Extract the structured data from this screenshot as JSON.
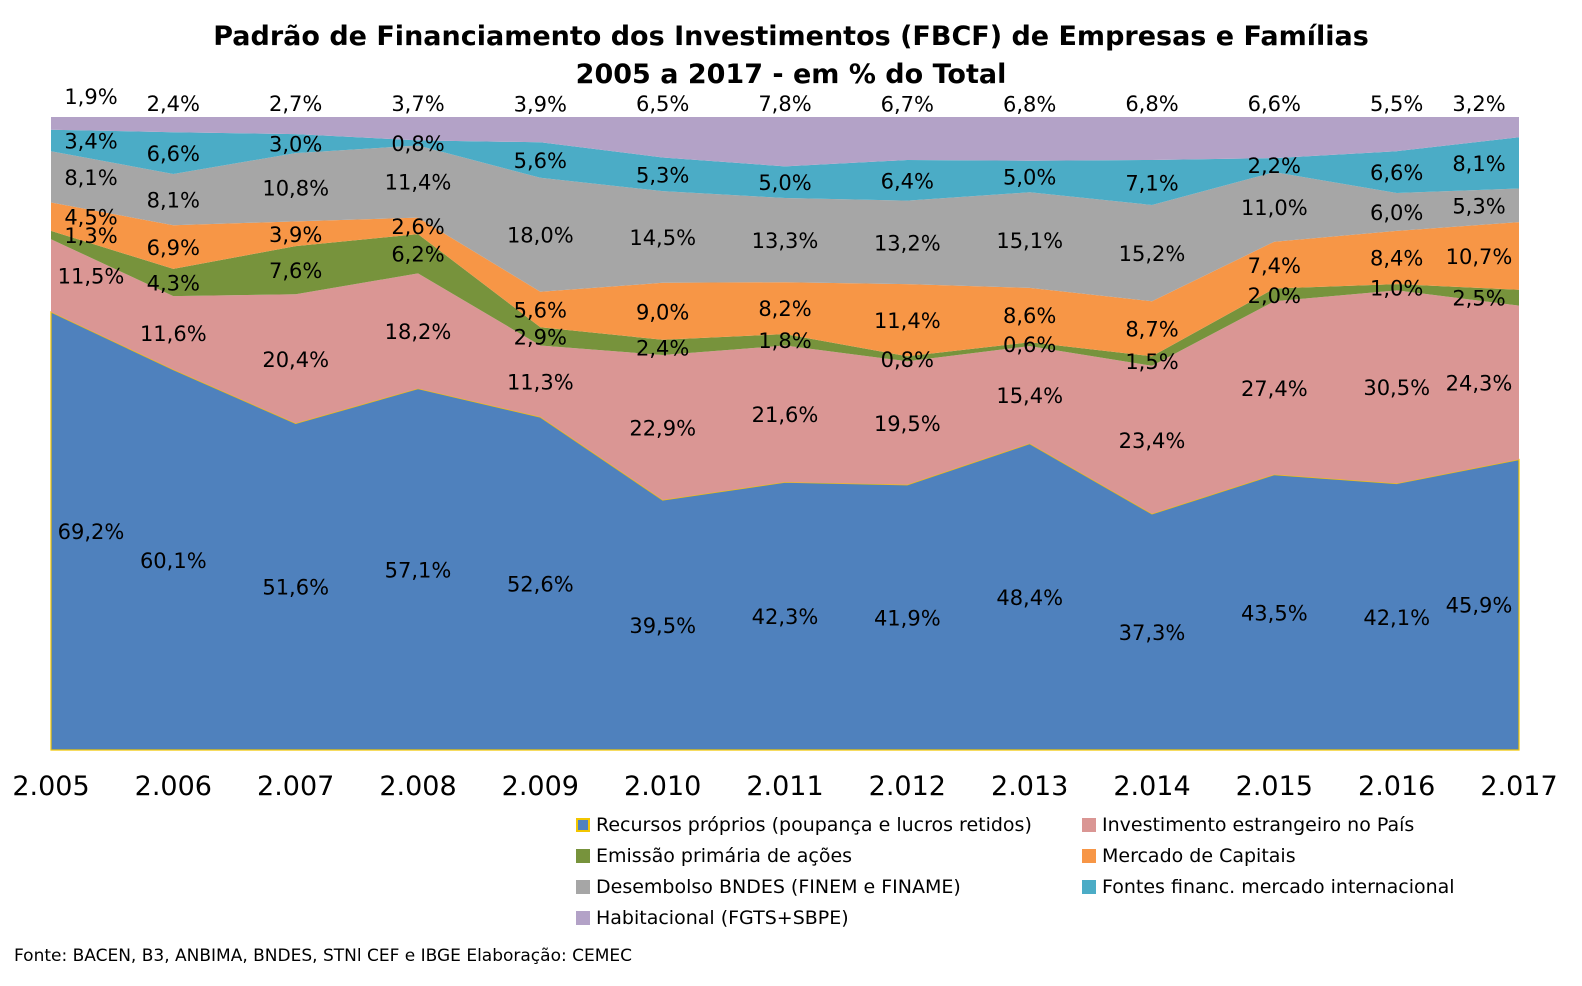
{
  "chart_data": {
    "type": "area",
    "stacked": true,
    "title": "Padrão de Financiamento dos Investimentos (FBCF) de Empresas e Famílias",
    "subtitle": "2005 a 2017  - em % do Total",
    "categories": [
      "2.005",
      "2.006",
      "2.007",
      "2.008",
      "2.009",
      "2.010",
      "2.011",
      "2.012",
      "2.013",
      "2.014",
      "2.015",
      "2.016",
      "2.017"
    ],
    "ylim": [
      0,
      100
    ],
    "grid": false,
    "legend_position": "bottom-right",
    "series": [
      {
        "name": "Recursos próprios (poupança e lucros retidos)",
        "color": "#4f81bd",
        "edge": "#f2c600",
        "values": [
          69.2,
          60.1,
          51.6,
          57.1,
          52.6,
          39.5,
          42.3,
          41.9,
          48.4,
          37.3,
          43.5,
          42.1,
          45.9
        ],
        "labels": [
          "69,2%",
          "60,1%",
          "51,6%",
          "57,1%",
          "52,6%",
          "39,5%",
          "42,3%",
          "41,9%",
          "48,4%",
          "37,3%",
          "43,5%",
          "42,1%",
          "45,9%"
        ]
      },
      {
        "name": "Investimento estrangeiro no País",
        "color": "#da9694",
        "values": [
          11.5,
          11.6,
          20.4,
          18.2,
          11.3,
          22.9,
          21.6,
          19.5,
          15.4,
          23.4,
          27.4,
          30.5,
          24.3
        ],
        "labels": [
          "11,5%",
          "11,6%",
          "20,4%",
          "18,2%",
          "11,3%",
          "22,9%",
          "21,6%",
          "19,5%",
          "15,4%",
          "23,4%",
          "27,4%",
          "30,5%",
          "24,3%"
        ]
      },
      {
        "name": "Emissão primária de ações",
        "color": "#77933c",
        "values": [
          1.3,
          4.3,
          7.6,
          6.2,
          2.9,
          2.4,
          1.8,
          0.8,
          0.6,
          1.5,
          2.0,
          1.0,
          2.5
        ],
        "labels": [
          "1,3%",
          "4,3%",
          "7,6%",
          "6,2%",
          "2,9%",
          "2,4%",
          "1,8%",
          "0,8%",
          "0,6%",
          "1,5%",
          "2,0%",
          "1,0%",
          "2,5%"
        ]
      },
      {
        "name": "Mercado de Capitais",
        "color": "#f79646",
        "values": [
          4.5,
          6.9,
          3.9,
          2.6,
          5.6,
          9.0,
          8.2,
          11.4,
          8.6,
          8.7,
          7.4,
          8.4,
          10.7
        ],
        "labels": [
          "4,5%",
          "6,9%",
          "3,9%",
          "2,6%",
          "5,6%",
          "9,0%",
          "8,2%",
          "11,4%",
          "8,6%",
          "8,7%",
          "7,4%",
          "8,4%",
          "10,7%"
        ]
      },
      {
        "name": "Desembolso BNDES (FINEM e FINAME)",
        "color": "#a6a6a6",
        "values": [
          8.1,
          8.1,
          10.8,
          11.4,
          18.0,
          14.5,
          13.3,
          13.2,
          15.1,
          15.2,
          11.0,
          6.0,
          5.3
        ],
        "labels": [
          "8,1%",
          "8,1%",
          "10,8%",
          "11,4%",
          "18,0%",
          "14,5%",
          "13,3%",
          "13,2%",
          "15,1%",
          "15,2%",
          "11,0%",
          "6,0%",
          "5,3%"
        ]
      },
      {
        "name": "Fontes financ. mercado internacional",
        "color": "#4bacc6",
        "values": [
          3.4,
          6.6,
          3.0,
          0.8,
          5.6,
          5.3,
          5.0,
          6.4,
          5.0,
          7.1,
          2.2,
          6.6,
          8.1
        ],
        "labels": [
          "3,4%",
          "6,6%",
          "3,0%",
          "0,8%",
          "5,6%",
          "5,3%",
          "5,0%",
          "6,4%",
          "5,0%",
          "7,1%",
          "2,2%",
          "6,6%",
          "8,1%"
        ]
      },
      {
        "name": "Habitacional (FGTS+SBPE)",
        "color": "#b3a2c7",
        "values": [
          1.9,
          2.4,
          2.7,
          3.7,
          3.9,
          6.5,
          7.8,
          6.7,
          6.8,
          6.8,
          6.6,
          5.5,
          3.2
        ],
        "labels": [
          "1,9%",
          "2,4%",
          "2,7%",
          "3,7%",
          "3,9%",
          "6,5%",
          "7,8%",
          "6,7%",
          "6,8%",
          "6,8%",
          "6,6%",
          "5,5%",
          "3,2%"
        ]
      }
    ],
    "source": "Fonte: BACEN, B3, ANBIMA, BNDES, STNl CEF e IBGE Elaboração: CEMEC"
  }
}
